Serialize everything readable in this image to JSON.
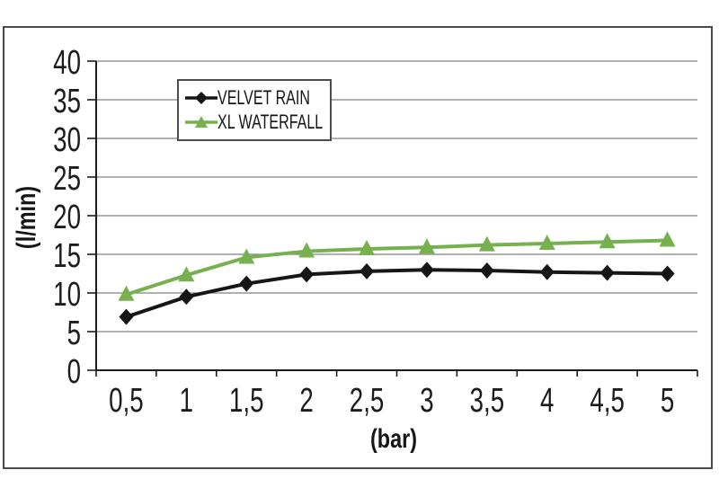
{
  "chart_data": {
    "type": "line",
    "title": "",
    "xlabel": "(bar)",
    "ylabel": "(l/min)",
    "x": [
      0.5,
      1,
      1.5,
      2,
      2.5,
      3,
      3.5,
      4,
      4.5,
      5
    ],
    "x_tick_labels": [
      "0,5",
      "1",
      "1,5",
      "2",
      "2,5",
      "3",
      "3,5",
      "4",
      "4,5",
      "5"
    ],
    "y_ticks": [
      0,
      5,
      10,
      15,
      20,
      25,
      30,
      35,
      40
    ],
    "ylim": [
      0,
      40
    ],
    "grid": "horizontal",
    "legend_position": "inside-top-center",
    "series": [
      {
        "name": "VELVET RAIN",
        "marker": "diamond",
        "color": "#161616",
        "values": [
          6.9,
          9.5,
          11.2,
          12.4,
          12.8,
          13,
          12.9,
          12.7,
          12.6,
          12.5
        ]
      },
      {
        "name": "XL WATERFALL",
        "marker": "triangle",
        "color": "#76b04f",
        "values": [
          9.8,
          12.3,
          14.6,
          15.4,
          15.7,
          15.9,
          16.2,
          16.4,
          16.6,
          16.8
        ]
      }
    ]
  },
  "colors": {
    "background": "#ffffff",
    "frame_border": "#4a4a4a",
    "gridline": "#808080",
    "axis": "#1c1c1c",
    "text": "#1c1c1c"
  }
}
